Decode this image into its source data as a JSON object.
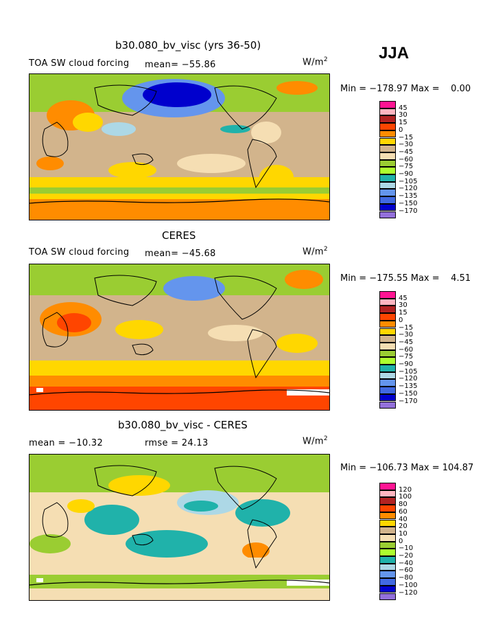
{
  "season": "JJA",
  "panels": [
    {
      "title": "b30.080_bv_visc (yrs 36-50)",
      "left_label": "TOA SW cloud forcing",
      "mid_label": "mean= −55.86",
      "units_base": "W/m",
      "units_exp": "2",
      "minmax": "Min = −178.97 Max =    0.00",
      "levels": [
        "45",
        "30",
        "15",
        "0",
        "−15",
        "−30",
        "−45",
        "−60",
        "−75",
        "−90",
        "−105",
        "−120",
        "−135",
        "−150",
        "−170"
      ]
    },
    {
      "title": "CERES",
      "left_label": "TOA SW cloud forcing",
      "mid_label": "mean= −45.68",
      "units_base": "W/m",
      "units_exp": "2",
      "minmax": "Min = −175.55 Max =    4.51",
      "levels": [
        "45",
        "30",
        "15",
        "0",
        "−15",
        "−30",
        "−45",
        "−60",
        "−75",
        "−90",
        "−105",
        "−120",
        "−135",
        "−150",
        "−170"
      ]
    },
    {
      "title": "b30.080_bv_visc - CERES",
      "left_label": "mean = −10.32",
      "mid_label": "rmse =  24.13",
      "units_base": "W/m",
      "units_exp": "2",
      "minmax": "Min = −106.73 Max = 104.87",
      "levels": [
        "120",
        "100",
        "80",
        "60",
        "40",
        "20",
        "10",
        "0",
        "−10",
        "−20",
        "−40",
        "−60",
        "−80",
        "−100",
        "−120"
      ]
    }
  ],
  "palette": [
    "#ff1493",
    "#ffb6c1",
    "#b22222",
    "#ff4500",
    "#ff8c00",
    "#ffd700",
    "#d2b48c",
    "#f5deb3",
    "#9acd32",
    "#adff2f",
    "#20b2aa",
    "#add8e6",
    "#6495ed",
    "#4169e1",
    "#0000cd",
    "#9370db"
  ]
}
